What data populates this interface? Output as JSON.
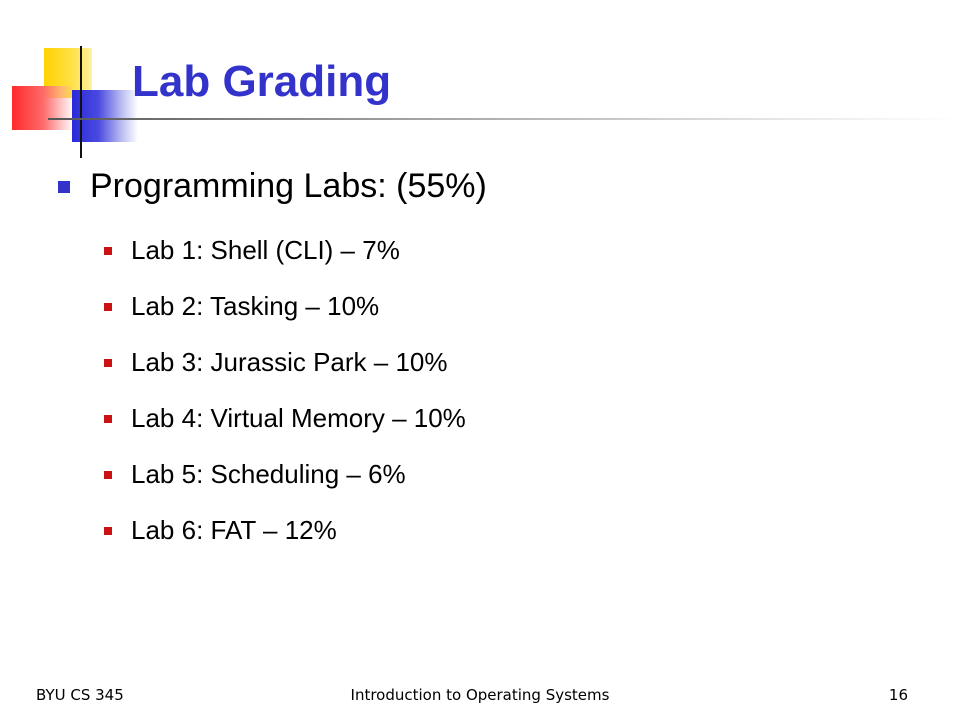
{
  "slide": {
    "title": "Lab Grading",
    "bullet": "Programming Labs: (55%)",
    "sub_bullets": [
      "Lab 1: Shell (CLI) – 7%",
      "Lab 2: Tasking – 10%",
      "Lab 3: Jurassic Park – 10%",
      "Lab 4: Virtual Memory – 10%",
      "Lab 5: Scheduling – 6%",
      "Lab 6: FAT – 12%"
    ]
  },
  "footer": {
    "left": "BYU CS 345",
    "center": "Introduction to Operating Systems",
    "page_number": "16"
  },
  "colors": {
    "title": "#3333cc",
    "level1_bullet": "#3333cc",
    "level2_bullet": "#cc1111"
  }
}
